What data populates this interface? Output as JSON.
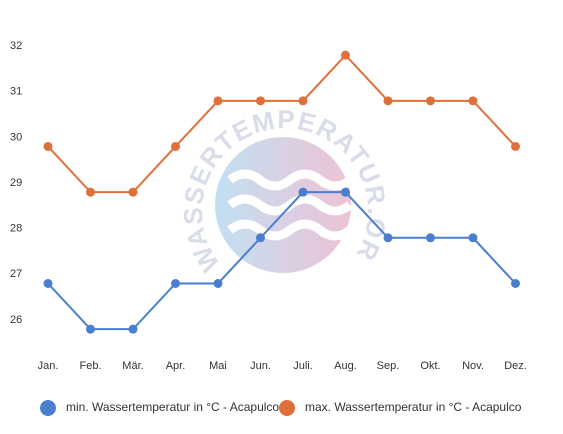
{
  "chart_data": {
    "type": "line",
    "categories": [
      "Jan.",
      "Feb.",
      "Mär.",
      "Apr.",
      "Mai",
      "Jun.",
      "Juli.",
      "Aug.",
      "Sep.",
      "Okt.",
      "Nov.",
      "Dez."
    ],
    "series": [
      {
        "name": "min. Wassertemperatur in °C - Acapulco",
        "color": "#4a7fcf",
        "values": [
          26.8,
          25.8,
          25.8,
          26.8,
          26.8,
          27.8,
          28.8,
          28.8,
          27.8,
          27.8,
          27.8,
          26.8
        ]
      },
      {
        "name": "max. Wassertemperatur in °C - Acapulco",
        "color": "#e0703a",
        "values": [
          29.8,
          28.8,
          28.8,
          29.8,
          30.8,
          30.8,
          30.8,
          31.8,
          30.8,
          30.8,
          30.8,
          29.8
        ]
      }
    ],
    "ylim": [
      25.4,
      32.2
    ],
    "yticks": [
      26,
      27,
      28,
      29,
      30,
      31,
      32
    ],
    "grid": false,
    "watermark": "WASSERTEMPERATUR.ORG"
  }
}
